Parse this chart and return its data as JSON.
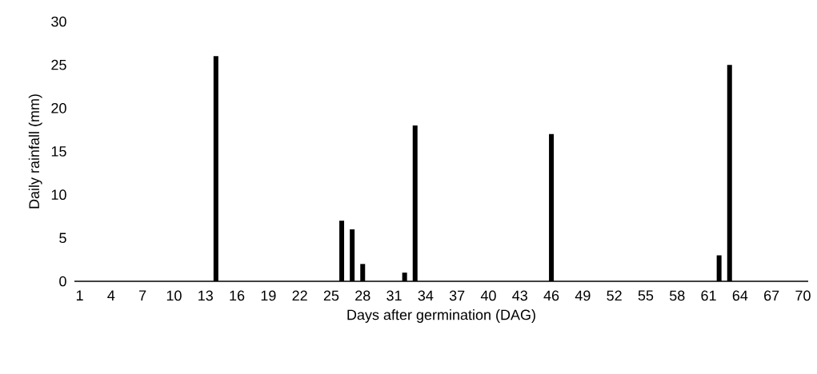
{
  "chart_data": {
    "type": "bar",
    "xlabel": "Days after germination (DAG)",
    "ylabel": "Daily rainfall (mm)",
    "categories": [
      "1",
      null,
      null,
      "4",
      null,
      null,
      "7",
      null,
      null,
      "10",
      null,
      null,
      "13",
      null,
      null,
      "16",
      null,
      null,
      "19",
      null,
      null,
      "22",
      null,
      null,
      "25",
      null,
      null,
      "28",
      null,
      null,
      "31",
      null,
      null,
      "34",
      null,
      null,
      "37",
      null,
      null,
      "40",
      null,
      null,
      "43",
      null,
      null,
      "46",
      null,
      null,
      "49",
      null,
      null,
      "52",
      null,
      null,
      "55",
      null,
      null,
      "58",
      null,
      null,
      "61",
      null,
      null,
      "64",
      null,
      null,
      "67",
      null,
      null,
      "70"
    ],
    "values": [
      0,
      0,
      0,
      0,
      0,
      0,
      0,
      0,
      0,
      0,
      0,
      0,
      0,
      26,
      0,
      0,
      0,
      0,
      0,
      0,
      0,
      0,
      0,
      0,
      0,
      7,
      6,
      2,
      0,
      0,
      0,
      1,
      18,
      0,
      0,
      0,
      0,
      0,
      0,
      0,
      0,
      0,
      0,
      0,
      0,
      17,
      0,
      0,
      0,
      0,
      0,
      0,
      0,
      0,
      0,
      0,
      0,
      0,
      0,
      0,
      0,
      3,
      25,
      0,
      0,
      0,
      0,
      0,
      0,
      0
    ],
    "color": "#000000",
    "ylim": [
      0,
      30
    ],
    "yticks": [
      0,
      5,
      10,
      15,
      20,
      25,
      30
    ],
    "grid": false
  }
}
